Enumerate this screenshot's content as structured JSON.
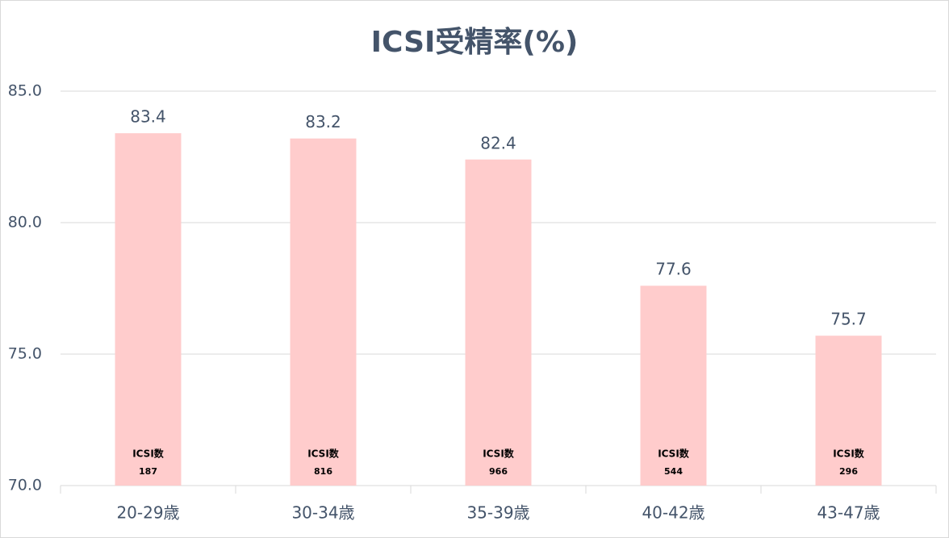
{
  "chart_data": {
    "type": "bar",
    "title": "ICSI受精率(%)",
    "categories": [
      "20-29歳",
      "30-34歳",
      "35-39歳",
      "40-42歳",
      "43-47歳"
    ],
    "values": [
      83.4,
      83.2,
      82.4,
      77.6,
      75.7
    ],
    "color": "#ffcccc",
    "ylim": [
      70,
      85
    ],
    "yticks": [
      {
        "value": 70,
        "label": "70.0"
      },
      {
        "value": 75,
        "label": "75.0"
      },
      {
        "value": 80,
        "label": "80.0"
      },
      {
        "value": 85,
        "label": "85.0"
      }
    ],
    "grid": true,
    "annotations": [
      {
        "label": "ICSI数",
        "value": 187
      },
      {
        "label": "ICSI数",
        "value": 816
      },
      {
        "label": "ICSI数",
        "value": 966
      },
      {
        "label": "ICSI数",
        "value": 544
      },
      {
        "label": "ICSI数",
        "value": 296
      }
    ]
  }
}
